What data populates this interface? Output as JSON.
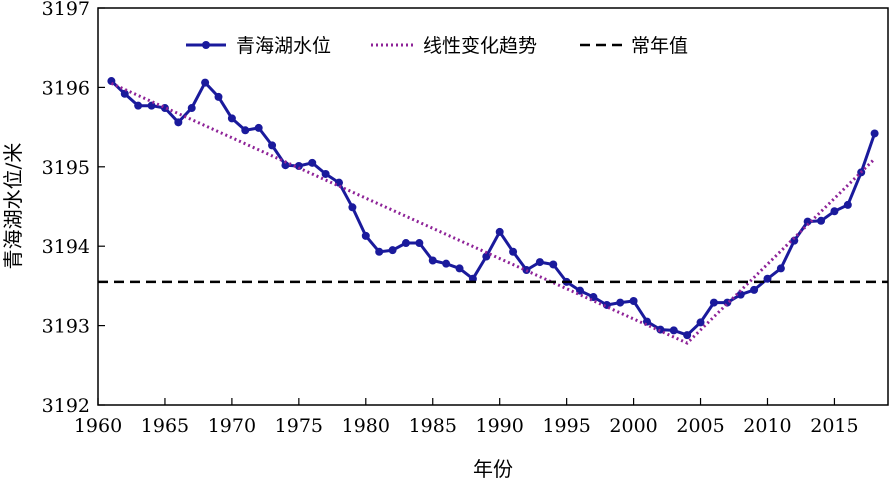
{
  "chart_data": {
    "type": "line",
    "xlabel": "年份",
    "ylabel": "青海湖水位/米",
    "xlim": [
      1960,
      2019
    ],
    "ylim": [
      3192,
      3197
    ],
    "xticks": [
      1960,
      1965,
      1970,
      1975,
      1980,
      1985,
      1990,
      1995,
      2000,
      2005,
      2010,
      2015
    ],
    "yticks": [
      3192,
      3193,
      3194,
      3195,
      3196,
      3197
    ],
    "grid": false,
    "legend_position": "top",
    "series": [
      {
        "name": "青海湖水位",
        "style": "line-marker",
        "color": "#1a1a9c",
        "x": [
          1961,
          1962,
          1963,
          1964,
          1965,
          1966,
          1967,
          1968,
          1969,
          1970,
          1971,
          1972,
          1973,
          1974,
          1975,
          1976,
          1977,
          1978,
          1979,
          1980,
          1981,
          1982,
          1983,
          1984,
          1985,
          1986,
          1987,
          1988,
          1989,
          1990,
          1991,
          1992,
          1993,
          1994,
          1995,
          1996,
          1997,
          1998,
          1999,
          2000,
          2001,
          2002,
          2003,
          2004,
          2005,
          2006,
          2007,
          2008,
          2009,
          2010,
          2011,
          2012,
          2013,
          2014,
          2015,
          2016,
          2017,
          2018
        ],
        "y": [
          3196.08,
          3195.92,
          3195.77,
          3195.77,
          3195.74,
          3195.56,
          3195.74,
          3196.06,
          3195.88,
          3195.61,
          3195.46,
          3195.49,
          3195.27,
          3195.02,
          3195.01,
          3195.05,
          3194.91,
          3194.8,
          3194.49,
          3194.13,
          3193.93,
          3193.95,
          3194.04,
          3194.04,
          3193.82,
          3193.78,
          3193.72,
          3193.59,
          3193.87,
          3194.18,
          3193.93,
          3193.7,
          3193.8,
          3193.77,
          3193.55,
          3193.44,
          3193.36,
          3193.26,
          3193.29,
          3193.31,
          3193.05,
          3192.95,
          3192.94,
          3192.88,
          3193.04,
          3193.29,
          3193.29,
          3193.39,
          3193.45,
          3193.59,
          3193.72,
          3194.07,
          3194.31,
          3194.32,
          3194.44,
          3194.52,
          3194.93,
          3195.42
        ]
      },
      {
        "name": "线性变化趋势",
        "style": "dotted",
        "color": "#8e2398",
        "x": [
          1961,
          2004,
          2018
        ],
        "y": [
          3196.05,
          3192.78,
          3195.1
        ]
      },
      {
        "name": "常年值",
        "style": "dashed",
        "color": "#000000",
        "x": [
          1960,
          2019
        ],
        "y": [
          3193.55,
          3193.55
        ]
      }
    ]
  }
}
